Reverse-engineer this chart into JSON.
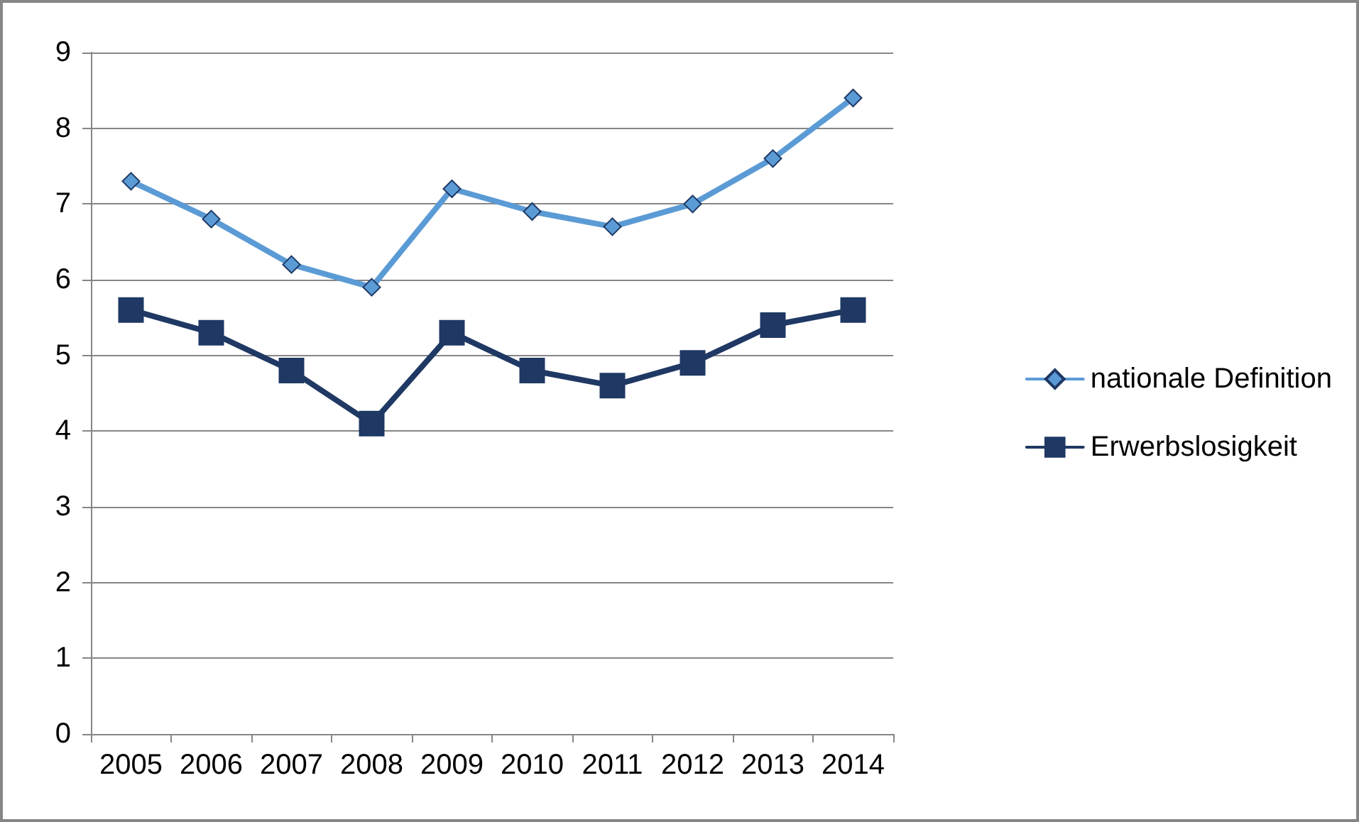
{
  "chart_data": {
    "type": "line",
    "categories": [
      "2005",
      "2006",
      "2007",
      "2008",
      "2009",
      "2010",
      "2011",
      "2012",
      "2013",
      "2014"
    ],
    "series": [
      {
        "name": "nationale Definition",
        "color": "#5b9bd5",
        "marker": "diamond",
        "values": [
          7.3,
          6.8,
          6.2,
          5.9,
          7.2,
          6.9,
          6.7,
          7.0,
          7.6,
          8.4
        ]
      },
      {
        "name": "Erwerbslosigkeit",
        "color": "#1f3864",
        "marker": "square",
        "values": [
          5.6,
          5.3,
          4.8,
          4.1,
          5.3,
          4.8,
          4.6,
          4.9,
          5.4,
          5.6
        ]
      }
    ],
    "ylim": [
      0,
      9
    ],
    "yticks": [
      0,
      1,
      2,
      3,
      4,
      5,
      6,
      7,
      8,
      9
    ],
    "grid": "y",
    "legend": "right",
    "line_style": "solid"
  }
}
